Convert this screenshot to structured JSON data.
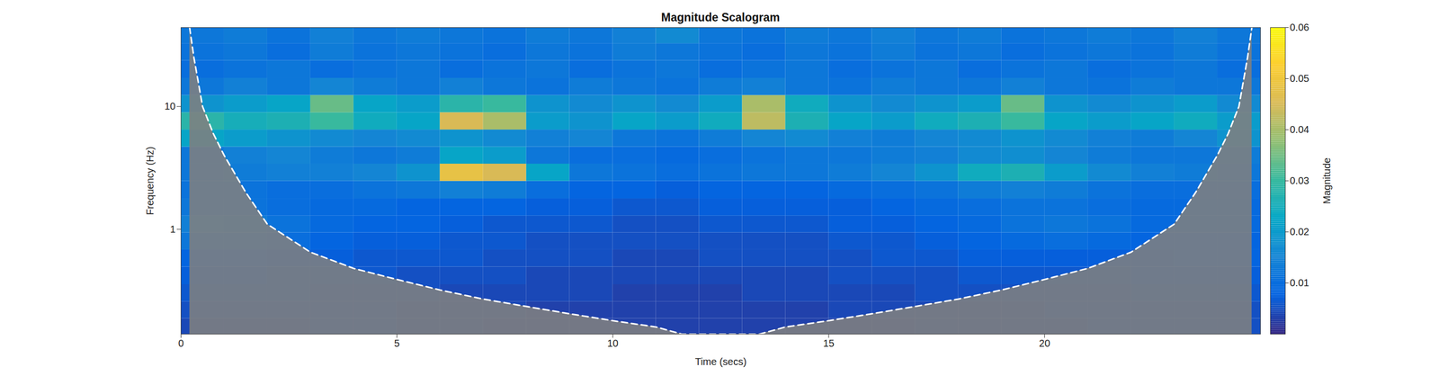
{
  "chart_data": {
    "type": "heatmap",
    "title": "Magnitude Scalogram",
    "x_label": "Time (secs)",
    "y_label": "Frequency (Hz)",
    "xlim": [
      0,
      25
    ],
    "xticks": [
      0,
      5,
      10,
      15,
      20
    ],
    "ylim": [
      0.14,
      44
    ],
    "yticks": [
      1,
      10
    ],
    "log": "y",
    "time": [
      0.5,
      1.5,
      2.5,
      3.5,
      4.5,
      5.5,
      6.5,
      7.5,
      8.5,
      9.5,
      10.5,
      11.5,
      12.5,
      13.5,
      14.5,
      15.5,
      16.5,
      17.5,
      18.5,
      19.5,
      20.5,
      21.5,
      22.5,
      23.5,
      24.5
    ],
    "frequency": [
      0.16,
      0.22,
      0.3,
      0.42,
      0.58,
      0.8,
      1.1,
      1.5,
      2.1,
      2.9,
      4,
      5.5,
      7.6,
      10.5,
      14.5,
      20,
      28,
      38
    ],
    "magnitude": [
      [
        0.004,
        0.004,
        0.004,
        0.005,
        0.005,
        0.004,
        0.004,
        0.003,
        0.003,
        0.003,
        0.003,
        0.003,
        0.003,
        0.003,
        0.003,
        0.003,
        0.003,
        0.004,
        0.004,
        0.004,
        0.004,
        0.005,
        0.005,
        0.005,
        0.005
      ],
      [
        0.005,
        0.005,
        0.005,
        0.005,
        0.005,
        0.004,
        0.004,
        0.004,
        0.003,
        0.003,
        0.003,
        0.003,
        0.003,
        0.003,
        0.003,
        0.004,
        0.004,
        0.004,
        0.004,
        0.004,
        0.005,
        0.005,
        0.005,
        0.005,
        0.005
      ],
      [
        0.006,
        0.006,
        0.006,
        0.005,
        0.005,
        0.005,
        0.004,
        0.004,
        0.004,
        0.004,
        0.003,
        0.003,
        0.003,
        0.004,
        0.004,
        0.004,
        0.004,
        0.005,
        0.005,
        0.005,
        0.005,
        0.005,
        0.006,
        0.006,
        0.006
      ],
      [
        0.007,
        0.007,
        0.006,
        0.006,
        0.006,
        0.005,
        0.005,
        0.005,
        0.004,
        0.004,
        0.004,
        0.004,
        0.004,
        0.004,
        0.004,
        0.005,
        0.005,
        0.005,
        0.006,
        0.006,
        0.006,
        0.006,
        0.007,
        0.007,
        0.007
      ],
      [
        0.008,
        0.008,
        0.007,
        0.007,
        0.006,
        0.006,
        0.006,
        0.005,
        0.005,
        0.005,
        0.004,
        0.004,
        0.005,
        0.005,
        0.005,
        0.005,
        0.006,
        0.006,
        0.007,
        0.007,
        0.007,
        0.007,
        0.007,
        0.008,
        0.008
      ],
      [
        0.012,
        0.011,
        0.01,
        0.008,
        0.007,
        0.007,
        0.006,
        0.006,
        0.005,
        0.005,
        0.005,
        0.005,
        0.005,
        0.005,
        0.005,
        0.006,
        0.006,
        0.007,
        0.008,
        0.009,
        0.01,
        0.009,
        0.008,
        0.008,
        0.008
      ],
      [
        0.014,
        0.013,
        0.011,
        0.009,
        0.008,
        0.008,
        0.007,
        0.006,
        0.006,
        0.006,
        0.005,
        0.005,
        0.006,
        0.006,
        0.006,
        0.007,
        0.007,
        0.008,
        0.009,
        0.011,
        0.012,
        0.011,
        0.009,
        0.009,
        0.009
      ],
      [
        0.012,
        0.011,
        0.01,
        0.009,
        0.009,
        0.008,
        0.008,
        0.008,
        0.007,
        0.007,
        0.006,
        0.006,
        0.007,
        0.007,
        0.007,
        0.007,
        0.008,
        0.009,
        0.01,
        0.011,
        0.011,
        0.01,
        0.009,
        0.009,
        0.009
      ],
      [
        0.011,
        0.011,
        0.01,
        0.01,
        0.011,
        0.012,
        0.014,
        0.013,
        0.01,
        0.008,
        0.008,
        0.007,
        0.008,
        0.008,
        0.008,
        0.009,
        0.01,
        0.011,
        0.013,
        0.014,
        0.013,
        0.011,
        0.01,
        0.01,
        0.01
      ],
      [
        0.012,
        0.013,
        0.014,
        0.014,
        0.015,
        0.018,
        0.048,
        0.045,
        0.022,
        0.012,
        0.011,
        0.01,
        0.011,
        0.012,
        0.012,
        0.013,
        0.015,
        0.018,
        0.024,
        0.026,
        0.02,
        0.016,
        0.014,
        0.013,
        0.012
      ],
      [
        0.012,
        0.014,
        0.015,
        0.013,
        0.012,
        0.013,
        0.022,
        0.02,
        0.012,
        0.01,
        0.01,
        0.009,
        0.01,
        0.011,
        0.012,
        0.012,
        0.013,
        0.014,
        0.016,
        0.017,
        0.015,
        0.013,
        0.012,
        0.012,
        0.013
      ],
      [
        0.022,
        0.02,
        0.018,
        0.016,
        0.015,
        0.016,
        0.018,
        0.016,
        0.014,
        0.015,
        0.012,
        0.011,
        0.013,
        0.015,
        0.016,
        0.014,
        0.013,
        0.015,
        0.016,
        0.018,
        0.016,
        0.014,
        0.013,
        0.015,
        0.018
      ],
      [
        0.028,
        0.025,
        0.026,
        0.03,
        0.024,
        0.022,
        0.045,
        0.04,
        0.02,
        0.018,
        0.022,
        0.02,
        0.024,
        0.042,
        0.026,
        0.022,
        0.02,
        0.024,
        0.026,
        0.03,
        0.022,
        0.02,
        0.022,
        0.024,
        0.02
      ],
      [
        0.018,
        0.02,
        0.022,
        0.034,
        0.022,
        0.02,
        0.028,
        0.03,
        0.018,
        0.016,
        0.018,
        0.016,
        0.02,
        0.04,
        0.024,
        0.018,
        0.016,
        0.018,
        0.02,
        0.034,
        0.018,
        0.016,
        0.018,
        0.02,
        0.016
      ],
      [
        0.012,
        0.014,
        0.012,
        0.015,
        0.013,
        0.012,
        0.014,
        0.012,
        0.011,
        0.013,
        0.012,
        0.011,
        0.013,
        0.014,
        0.012,
        0.011,
        0.013,
        0.012,
        0.012,
        0.014,
        0.012,
        0.011,
        0.013,
        0.012,
        0.012
      ],
      [
        0.01,
        0.011,
        0.012,
        0.01,
        0.011,
        0.012,
        0.01,
        0.011,
        0.012,
        0.01,
        0.011,
        0.012,
        0.01,
        0.011,
        0.012,
        0.01,
        0.011,
        0.012,
        0.01,
        0.011,
        0.012,
        0.01,
        0.011,
        0.012,
        0.01
      ],
      [
        0.011,
        0.012,
        0.01,
        0.013,
        0.011,
        0.012,
        0.011,
        0.01,
        0.012,
        0.011,
        0.013,
        0.012,
        0.011,
        0.01,
        0.012,
        0.011,
        0.013,
        0.011,
        0.012,
        0.01,
        0.011,
        0.012,
        0.011,
        0.013,
        0.011
      ],
      [
        0.012,
        0.013,
        0.011,
        0.014,
        0.012,
        0.013,
        0.012,
        0.011,
        0.013,
        0.012,
        0.014,
        0.016,
        0.012,
        0.011,
        0.013,
        0.012,
        0.014,
        0.012,
        0.013,
        0.011,
        0.012,
        0.013,
        0.012,
        0.014,
        0.012
      ]
    ],
    "colorbar": {
      "label": "Magnitude",
      "range": [
        0,
        0.06
      ],
      "ticks": [
        0.01,
        0.02,
        0.03,
        0.04,
        0.05,
        0.06
      ]
    },
    "cone_of_influence": {
      "time": [
        0.2,
        0.3,
        0.5,
        0.75,
        1,
        1.5,
        2,
        3,
        4,
        5,
        6,
        7,
        8,
        9,
        10,
        11,
        11.6,
        13.4,
        14,
        15,
        16,
        17,
        18,
        19,
        20,
        21,
        22,
        23,
        23.5,
        24,
        24.25,
        24.5,
        24.7,
        24.8
      ],
      "frequency": [
        44,
        25,
        10,
        6,
        4,
        2,
        1.1,
        0.65,
        0.48,
        0.39,
        0.32,
        0.27,
        0.235,
        0.205,
        0.18,
        0.16,
        0.14,
        0.14,
        0.16,
        0.18,
        0.205,
        0.235,
        0.27,
        0.32,
        0.39,
        0.48,
        0.65,
        1.1,
        2,
        4,
        6,
        10,
        25,
        44
      ]
    }
  }
}
